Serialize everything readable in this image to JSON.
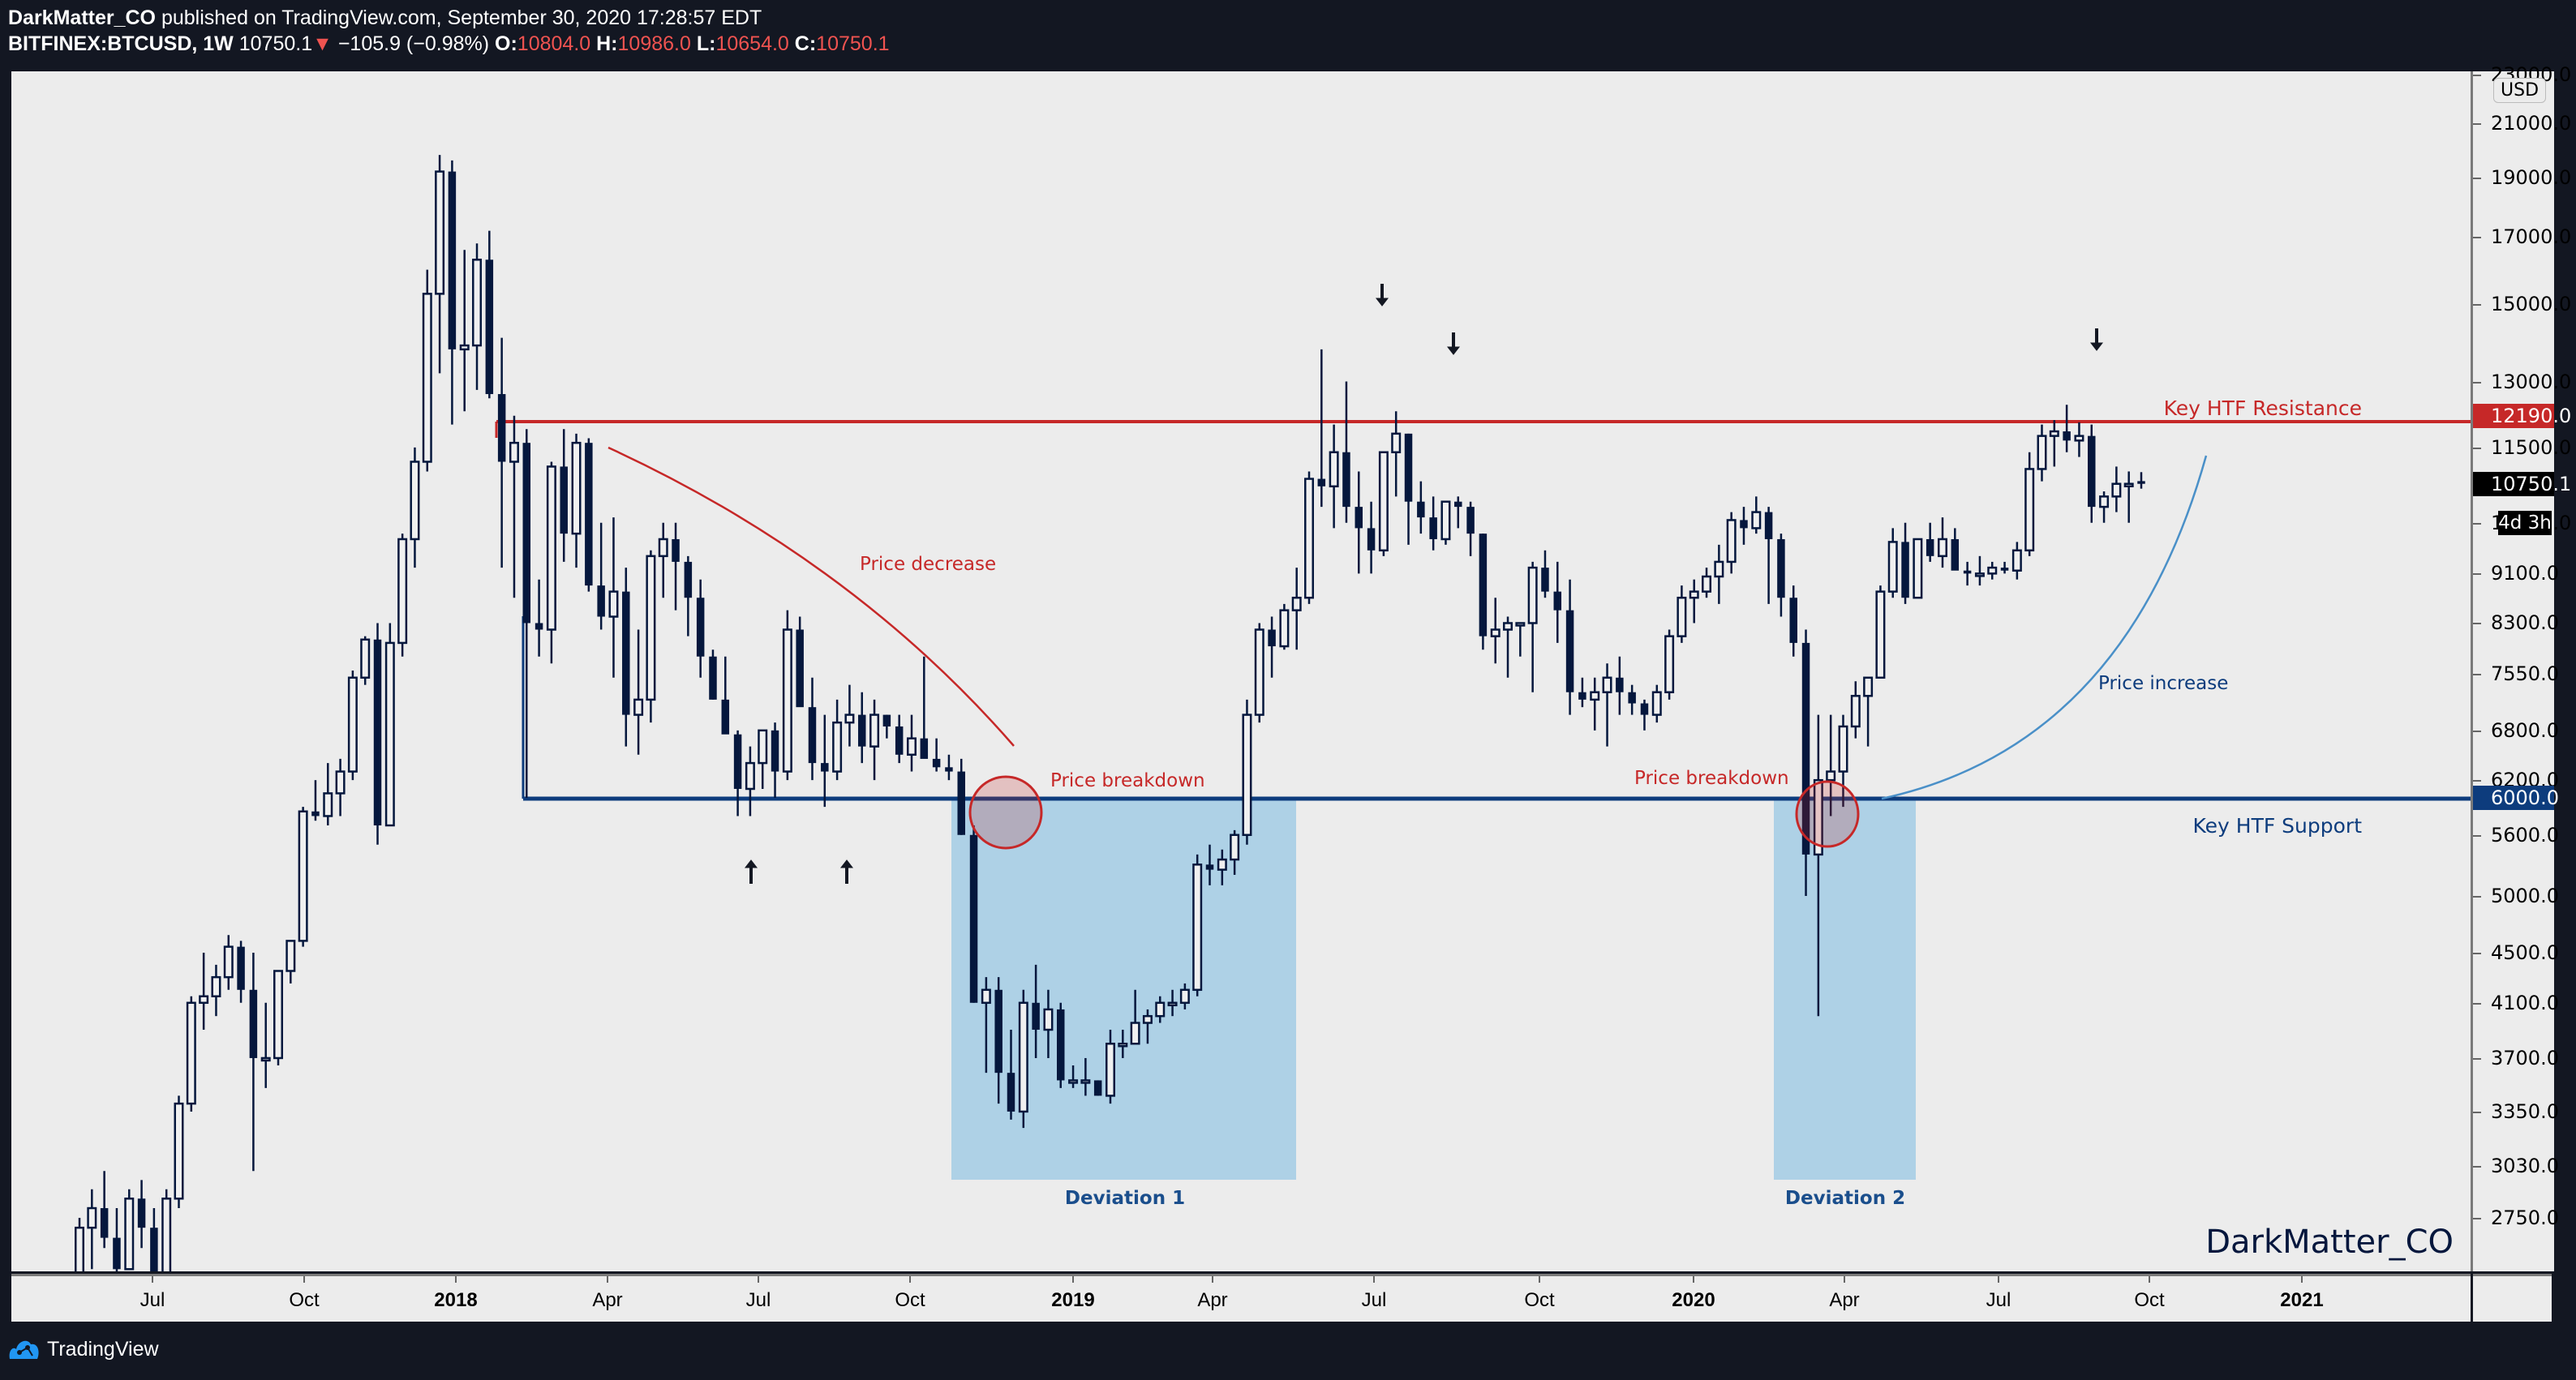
{
  "header": {
    "author": "DarkMatter_CO",
    "published_text": " published on TradingView.com, September 30, 2020 17:28:57 EDT",
    "symbol": "BITFINEX:BTCUSD, 1W",
    "last": "10750.1",
    "change_arrow": "▼",
    "change": "−105.9 (−0.98%)",
    "o_label": "O:",
    "o": "10804.0",
    "h_label": "H:",
    "h": "10986.0",
    "l_label": "L:",
    "l": "10654.0",
    "c_label": "C:",
    "c": "10750.1"
  },
  "price_axis": {
    "currency": "USD",
    "ticks": [
      "23000.0",
      "21000.0",
      "19000.0",
      "17000.0",
      "15000.0",
      "13000.0",
      "11500.0",
      "10000.0",
      "9100.0",
      "8300.0",
      "7550.0",
      "6800.0",
      "6200.0",
      "5600.0",
      "5000.0",
      "4500.0",
      "4100.0",
      "3700.0",
      "3350.0",
      "3030.0",
      "2750.0"
    ],
    "resistance_label": "12190.0",
    "support_label": "6000.0",
    "last_label": "10750.1",
    "countdown": "4d 3h"
  },
  "time_axis": {
    "ticks": [
      {
        "label": "Jul",
        "x": 188,
        "year": false
      },
      {
        "label": "Oct",
        "x": 375,
        "year": false
      },
      {
        "label": "2018",
        "x": 562,
        "year": true
      },
      {
        "label": "Apr",
        "x": 749,
        "year": false
      },
      {
        "label": "Jul",
        "x": 935,
        "year": false
      },
      {
        "label": "Oct",
        "x": 1122,
        "year": false
      },
      {
        "label": "2019",
        "x": 1323,
        "year": true
      },
      {
        "label": "Apr",
        "x": 1495,
        "year": false
      },
      {
        "label": "Jul",
        "x": 1694,
        "year": false
      },
      {
        "label": "Oct",
        "x": 1898,
        "year": false
      },
      {
        "label": "2020",
        "x": 2088,
        "year": true
      },
      {
        "label": "Apr",
        "x": 2274,
        "year": false
      },
      {
        "label": "Jul",
        "x": 2464,
        "year": false
      },
      {
        "label": "Oct",
        "x": 2650,
        "year": false
      },
      {
        "label": "2021",
        "x": 2838,
        "year": true
      }
    ]
  },
  "annotations": {
    "resistance_text": "Key HTF Resistance",
    "support_text": "Key HTF Support",
    "price_decrease": "Price decrease",
    "price_breakdown_1": "Price breakdown",
    "price_breakdown_2": "Price breakdown",
    "price_increase": "Price increase",
    "deviation_1": "Deviation 1",
    "deviation_2": "Deviation 2",
    "watermark": "DarkMatter_CO"
  },
  "colors": {
    "background": "#131722",
    "pane": "#ececec",
    "candle": "#05173d",
    "resistance": "#c62828",
    "support": "#0d3c7d",
    "deviation_box": "#aed1e6",
    "curve_increase": "#4a90c8",
    "last_price_bg": "#000000"
  },
  "footer": {
    "brand": "TradingView"
  },
  "chart_data": {
    "type": "candlestick",
    "title": "BITFINEX:BTCUSD, 1W",
    "xlabel": "",
    "ylabel": "USD",
    "y_scale": "log",
    "ylim": [
      2600,
      23000
    ],
    "x_range": [
      "2017-05",
      "2021-03"
    ],
    "grid": false,
    "levels": [
      {
        "name": "Key HTF Resistance",
        "value": 12190
      },
      {
        "name": "Key HTF Support",
        "value": 6000
      }
    ],
    "zones": [
      {
        "name": "Deviation 1",
        "from": "2018-10",
        "to": "2019-05",
        "low": 3030,
        "high": 6000
      },
      {
        "name": "Deviation 2",
        "from": "2020-02",
        "to": "2020-05",
        "low": 3030,
        "high": 6000
      }
    ],
    "candles_weekly_ohlc": [
      [
        2400,
        2750,
        2300,
        2700
      ],
      [
        2700,
        2900,
        2500,
        2800
      ],
      [
        2800,
        3000,
        2600,
        2650
      ],
      [
        2650,
        2800,
        2400,
        2500
      ],
      [
        2500,
        2900,
        2500,
        2850
      ],
      [
        2850,
        2950,
        2600,
        2700
      ],
      [
        2700,
        2800,
        2300,
        2450
      ],
      [
        2450,
        2900,
        2400,
        2850
      ],
      [
        2850,
        3450,
        2800,
        3400
      ],
      [
        3400,
        4150,
        3350,
        4100
      ],
      [
        4100,
        4500,
        3900,
        4150
      ],
      [
        4150,
        4400,
        4000,
        4300
      ],
      [
        4300,
        4650,
        4200,
        4550
      ],
      [
        4550,
        4600,
        4100,
        4200
      ],
      [
        4200,
        4500,
        3000,
        3700
      ],
      [
        3700,
        4100,
        3500,
        3700
      ],
      [
        3700,
        4350,
        3650,
        4350
      ],
      [
        4350,
        4600,
        4250,
        4600
      ],
      [
        4600,
        5900,
        4550,
        5850
      ],
      [
        5850,
        6200,
        5750,
        5800
      ],
      [
        5800,
        6400,
        5700,
        6050
      ],
      [
        6050,
        6450,
        5800,
        6300
      ],
      [
        6300,
        7600,
        6200,
        7500
      ],
      [
        7500,
        8100,
        7400,
        8050
      ],
      [
        8050,
        8300,
        5500,
        5700
      ],
      [
        5700,
        8300,
        5700,
        8000
      ],
      [
        8000,
        9800,
        7800,
        9700
      ],
      [
        9700,
        11500,
        9200,
        11200
      ],
      [
        11200,
        16000,
        11000,
        15300
      ],
      [
        15300,
        19800,
        13200,
        19200
      ],
      [
        19200,
        19600,
        12000,
        13800
      ],
      [
        13800,
        16600,
        12300,
        13900
      ],
      [
        13900,
        16800,
        12800,
        16300
      ],
      [
        16300,
        17200,
        12600,
        12700
      ],
      [
        12700,
        14100,
        9200,
        11200
      ],
      [
        11200,
        12200,
        8700,
        11600
      ],
      [
        11600,
        11900,
        6000,
        8300
      ],
      [
        8300,
        9000,
        7800,
        8200
      ],
      [
        8200,
        11200,
        7700,
        11100
      ],
      [
        11100,
        11900,
        9300,
        9800
      ],
      [
        9800,
        11800,
        9200,
        11600
      ],
      [
        11600,
        11700,
        8800,
        8900
      ],
      [
        8900,
        10000,
        8200,
        8400
      ],
      [
        8400,
        10100,
        7500,
        8800
      ],
      [
        8800,
        9200,
        6600,
        7000
      ],
      [
        7000,
        8200,
        6500,
        7200
      ],
      [
        7200,
        9500,
        6900,
        9400
      ],
      [
        9400,
        10000,
        8700,
        9700
      ],
      [
        9700,
        10000,
        8500,
        9300
      ],
      [
        9300,
        9400,
        8100,
        8700
      ],
      [
        8700,
        9000,
        7500,
        7800
      ],
      [
        7800,
        7900,
        7200,
        7200
      ],
      [
        7200,
        7800,
        6800,
        6750
      ],
      [
        6750,
        6800,
        5800,
        6100
      ],
      [
        6100,
        6600,
        5800,
        6400
      ],
      [
        6400,
        6800,
        6100,
        6800
      ],
      [
        6800,
        6900,
        6000,
        6300
      ],
      [
        6300,
        8500,
        6200,
        8200
      ],
      [
        8200,
        8400,
        7800,
        7100
      ],
      [
        7100,
        7500,
        6200,
        6400
      ],
      [
        6400,
        7000,
        5900,
        6300
      ],
      [
        6300,
        7200,
        6200,
        6900
      ],
      [
        6900,
        7400,
        6600,
        7000
      ],
      [
        7000,
        7300,
        6400,
        6600
      ],
      [
        6600,
        7200,
        6200,
        7000
      ],
      [
        7000,
        7000,
        6700,
        6850
      ],
      [
        6850,
        7000,
        6400,
        6500
      ],
      [
        6500,
        7000,
        6300,
        6700
      ],
      [
        6700,
        7800,
        6600,
        6450
      ],
      [
        6450,
        6700,
        6300,
        6350
      ],
      [
        6350,
        6500,
        6200,
        6300
      ],
      [
        6300,
        6450,
        5600,
        5600
      ],
      [
        5600,
        5700,
        4100,
        4100
      ],
      [
        4100,
        4300,
        3600,
        4200
      ],
      [
        4200,
        4300,
        3400,
        3600
      ],
      [
        3600,
        3900,
        3300,
        3350
      ],
      [
        3350,
        4200,
        3250,
        4100
      ],
      [
        4100,
        4400,
        3700,
        3900
      ],
      [
        3900,
        4200,
        3700,
        4050
      ],
      [
        4050,
        4100,
        3500,
        3550
      ],
      [
        3550,
        3650,
        3500,
        3550
      ],
      [
        3550,
        3700,
        3450,
        3550
      ],
      [
        3550,
        3550,
        3450,
        3450
      ],
      [
        3450,
        3900,
        3400,
        3800
      ],
      [
        3800,
        3900,
        3700,
        3800
      ],
      [
        3800,
        4200,
        3900,
        3950
      ],
      [
        3950,
        4050,
        3800,
        4000
      ],
      [
        4000,
        4150,
        3950,
        4100
      ],
      [
        4100,
        4200,
        4000,
        4100
      ],
      [
        4100,
        4250,
        4050,
        4200
      ],
      [
        4200,
        5400,
        4150,
        5300
      ],
      [
        5300,
        5500,
        5100,
        5250
      ],
      [
        5250,
        5450,
        5100,
        5350
      ],
      [
        5350,
        5650,
        5200,
        5600
      ],
      [
        5600,
        7200,
        5500,
        7000
      ],
      [
        7000,
        8300,
        6900,
        8200
      ],
      [
        8200,
        8400,
        7500,
        7950
      ],
      [
        7950,
        8600,
        7900,
        8500
      ],
      [
        8500,
        9200,
        7900,
        8700
      ],
      [
        8700,
        11000,
        8600,
        10850
      ],
      [
        10850,
        13800,
        10300,
        10700
      ],
      [
        10700,
        12000,
        9900,
        11400
      ],
      [
        11400,
        13000,
        10000,
        10300
      ],
      [
        10300,
        11000,
        9100,
        9900
      ],
      [
        9900,
        10400,
        9100,
        9500
      ],
      [
        9500,
        11300,
        9400,
        11400
      ],
      [
        11400,
        12300,
        10500,
        11800
      ],
      [
        11800,
        11800,
        9600,
        10400
      ],
      [
        10400,
        10800,
        9800,
        10100
      ],
      [
        10100,
        10500,
        9500,
        9700
      ],
      [
        9700,
        10400,
        9600,
        10400
      ],
      [
        10400,
        10500,
        9900,
        10300
      ],
      [
        10300,
        10400,
        9400,
        9800
      ],
      [
        9800,
        9800,
        7900,
        8100
      ],
      [
        8100,
        8700,
        7700,
        8200
      ],
      [
        8200,
        8400,
        7500,
        8300
      ],
      [
        8300,
        8300,
        7800,
        8300
      ],
      [
        8300,
        9300,
        7300,
        9200
      ],
      [
        9200,
        9500,
        8700,
        8800
      ],
      [
        8800,
        9300,
        8000,
        8500
      ],
      [
        8500,
        9000,
        7000,
        7300
      ],
      [
        7300,
        7500,
        7100,
        7200
      ],
      [
        7200,
        7500,
        6800,
        7300
      ],
      [
        7300,
        7700,
        6600,
        7500
      ],
      [
        7500,
        7800,
        7000,
        7300
      ],
      [
        7300,
        7400,
        7000,
        7150
      ],
      [
        7150,
        7200,
        6800,
        7000
      ],
      [
        7000,
        7400,
        6900,
        7300
      ],
      [
        7300,
        8200,
        7200,
        8100
      ],
      [
        8100,
        8900,
        8000,
        8700
      ],
      [
        8700,
        9000,
        8300,
        8800
      ],
      [
        8800,
        9200,
        8700,
        9050
      ],
      [
        9050,
        9600,
        8600,
        9300
      ],
      [
        9300,
        10200,
        9100,
        10050
      ],
      [
        10050,
        10300,
        9600,
        9900
      ],
      [
        9900,
        10500,
        9800,
        10200
      ],
      [
        10200,
        10300,
        8600,
        9700
      ],
      [
        9700,
        9800,
        8400,
        8700
      ],
      [
        8700,
        8900,
        7800,
        8000
      ],
      [
        8000,
        8200,
        5000,
        5400
      ],
      [
        5400,
        7000,
        4000,
        6200
      ],
      [
        6200,
        7000,
        5800,
        6300
      ],
      [
        6300,
        7000,
        5900,
        6850
      ],
      [
        6850,
        7450,
        6700,
        7250
      ],
      [
        7250,
        7400,
        6600,
        7500
      ],
      [
        7500,
        8900,
        7500,
        8800
      ],
      [
        8800,
        9900,
        8700,
        9650
      ],
      [
        9650,
        10000,
        8600,
        8700
      ],
      [
        8700,
        9600,
        8700,
        9700
      ],
      [
        9700,
        10000,
        9300,
        9400
      ],
      [
        9400,
        10100,
        9200,
        9700
      ],
      [
        9700,
        9900,
        9300,
        9150
      ],
      [
        9150,
        9300,
        8900,
        9100
      ],
      [
        9100,
        9400,
        8900,
        9100
      ],
      [
        9100,
        9300,
        9000,
        9200
      ],
      [
        9200,
        9300,
        9100,
        9150
      ],
      [
        9150,
        9650,
        9000,
        9500
      ],
      [
        9500,
        11400,
        9400,
        11050
      ],
      [
        11050,
        12000,
        10800,
        11750
      ],
      [
        11750,
        12100,
        11100,
        11850
      ],
      [
        11850,
        12450,
        11400,
        11650
      ],
      [
        11650,
        12050,
        11300,
        11750
      ],
      [
        11750,
        12000,
        10000,
        10300
      ],
      [
        10300,
        10600,
        10000,
        10500
      ],
      [
        10500,
        11100,
        10200,
        10750
      ],
      [
        10750,
        11000,
        10000,
        10750
      ],
      [
        10804,
        10986,
        10654,
        10750.1
      ]
    ]
  }
}
